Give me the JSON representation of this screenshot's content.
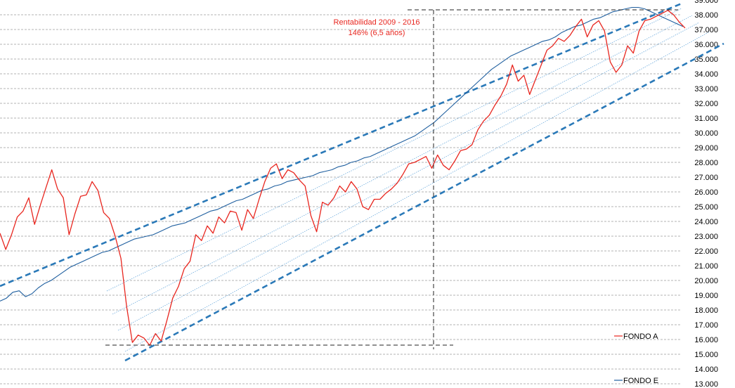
{
  "chart_data": {
    "type": "line",
    "title": "",
    "xlabel": "",
    "ylabel": "",
    "ylim": [
      13000,
      38800
    ],
    "yticks": [
      13000,
      14000,
      15000,
      16000,
      17000,
      18000,
      19000,
      20000,
      21000,
      22000,
      23000,
      24000,
      25000,
      26000,
      27000,
      28000,
      29000,
      30000,
      31000,
      32000,
      33000,
      34000,
      35000,
      36000,
      37000,
      38000
    ],
    "ytick_labels": [
      "13.000",
      "14.000",
      "15.000",
      "16.000",
      "17.000",
      "18.000",
      "19.000",
      "20.000",
      "21.000",
      "22.000",
      "23.000",
      "24.000",
      "25.000",
      "26.000",
      "27.000",
      "28.000",
      "29.000",
      "30.000",
      "31.000",
      "32.000",
      "33.000",
      "34.000",
      "35.000",
      "36.000",
      "37.000",
      "38.000"
    ],
    "top_partial_label": "39.000",
    "grid": "horizontal dashed",
    "annotation": {
      "line1": "Rentabilidad  2009 - 2016",
      "line2": "146%  (6,5 años)"
    },
    "series": [
      {
        "name": "FONDO A",
        "color": "#e8261f",
        "values": [
          23200,
          22100,
          23100,
          24300,
          24700,
          25600,
          23800,
          25100,
          26300,
          27500,
          26200,
          25600,
          23100,
          24500,
          25700,
          25800,
          26700,
          26100,
          24600,
          24200,
          23000,
          21500,
          18200,
          15800,
          16300,
          16100,
          15600,
          16400,
          15900,
          17300,
          18800,
          19600,
          20800,
          21300,
          23100,
          22700,
          23700,
          23200,
          24300,
          23900,
          24700,
          24600,
          23400,
          24800,
          24200,
          25500,
          26700,
          27600,
          27900,
          26900,
          27500,
          27300,
          26800,
          26400,
          24400,
          23300,
          25300,
          25100,
          25600,
          26400,
          26000,
          26700,
          26200,
          25000,
          24800,
          25500,
          25500,
          25900,
          26200,
          26600,
          27200,
          27900,
          28000,
          28200,
          28400,
          27600,
          28500,
          27800,
          27500,
          28100,
          28800,
          28900,
          29200,
          30200,
          30800,
          31200,
          31900,
          32500,
          33300,
          34600,
          33500,
          33900,
          32600,
          33600,
          34600,
          35600,
          35900,
          36400,
          36200,
          36600,
          37200,
          37700,
          36500,
          37300,
          37600,
          36900,
          34800,
          34100,
          34600,
          35900,
          35400,
          36900,
          37600,
          37700,
          37900,
          38100,
          38300,
          38000,
          37500,
          37100
        ],
        "end_label": "FONDO A"
      },
      {
        "name": "FONDO E",
        "color": "#1f5f9f",
        "values": [
          18600,
          18800,
          19200,
          19300,
          18900,
          19100,
          19500,
          19800,
          20000,
          20300,
          20600,
          20900,
          21100,
          21300,
          21500,
          21700,
          21900,
          22000,
          22200,
          22400,
          22600,
          22800,
          22900,
          23000,
          23100,
          23300,
          23500,
          23700,
          23800,
          23900,
          24100,
          24300,
          24500,
          24700,
          24800,
          25000,
          25200,
          25400,
          25500,
          25700,
          25900,
          26100,
          26200,
          26400,
          26500,
          26700,
          26800,
          26900,
          27000,
          27100,
          27300,
          27400,
          27500,
          27700,
          27800,
          28000,
          28100,
          28300,
          28400,
          28600,
          28800,
          29000,
          29200,
          29400,
          29600,
          29800,
          30100,
          30400,
          30700,
          31100,
          31500,
          31900,
          32300,
          32700,
          33100,
          33500,
          33900,
          34300,
          34600,
          34900,
          35200,
          35400,
          35600,
          35800,
          36000,
          36200,
          36300,
          36500,
          36800,
          37000,
          37200,
          37300,
          37500,
          37700,
          37800,
          38000,
          38200,
          38300,
          38400,
          38500,
          38500,
          38400,
          38200,
          38000,
          37800,
          37600,
          37400,
          37200
        ],
        "end_label": "FONDO E"
      }
    ]
  }
}
